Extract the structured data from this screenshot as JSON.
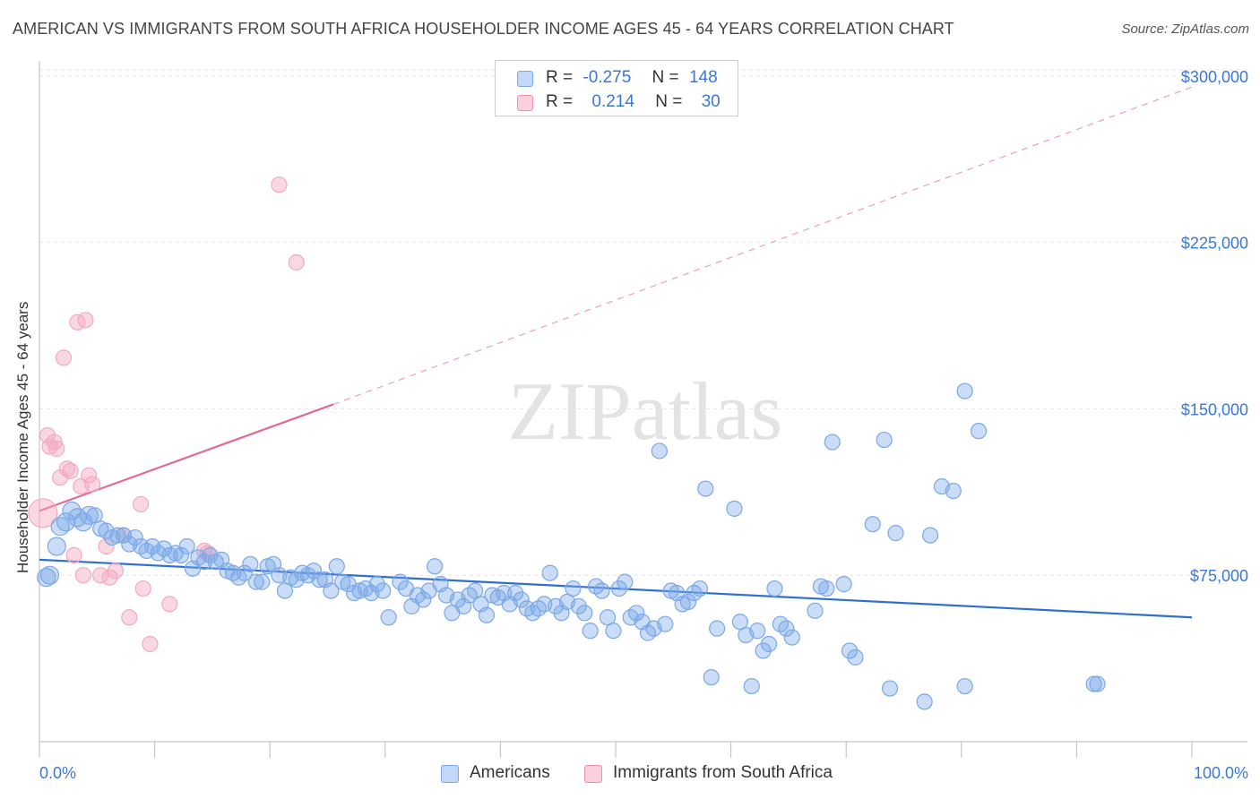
{
  "title": "AMERICAN VS IMMIGRANTS FROM SOUTH AFRICA HOUSEHOLDER INCOME AGES 45 - 64 YEARS CORRELATION CHART",
  "source": "Source: ZipAtlas.com",
  "watermark": "ZIPatlas",
  "legend": {
    "r_label": "R =",
    "n_label": "N =",
    "rows": [
      {
        "r": "-0.275",
        "n": "148",
        "color": "#a7c6f2",
        "border": "#6e9fe0"
      },
      {
        "r": "0.214",
        "n": "30",
        "color": "#f7bccd",
        "border": "#e88aa5"
      }
    ]
  },
  "bottom_legend": [
    "Americans",
    "Immigrants from South Africa"
  ],
  "chart_data": {
    "type": "scatter",
    "title": "AMERICAN VS IMMIGRANTS FROM SOUTH AFRICA HOUSEHOLDER INCOME AGES 45 - 64 YEARS CORRELATION CHART",
    "xlabel": "",
    "ylabel": "Householder Income Ages 45 - 64 years",
    "xlim": [
      0,
      100
    ],
    "ylim": [
      0,
      310000
    ],
    "x_tick_labels": [
      "0.0%",
      "100.0%"
    ],
    "y_ticks": [
      75000,
      150000,
      225000,
      300000
    ],
    "y_tick_labels": [
      "$75,000",
      "$150,000",
      "$225,000",
      "$300,000"
    ],
    "grid": true,
    "series": [
      {
        "name": "Americans",
        "color": "#7aa8e8",
        "line_color": "#2f6fce",
        "trend": {
          "x": [
            0,
            100
          ],
          "y": [
            82000,
            56000
          ]
        },
        "points": [
          [
            0.6,
            74000
          ],
          [
            0.9,
            75000
          ],
          [
            1.5,
            88000
          ],
          [
            1.8,
            97000
          ],
          [
            2.3,
            99000
          ],
          [
            2.8,
            104000
          ],
          [
            3.3,
            101000
          ],
          [
            3.8,
            99000
          ],
          [
            4.3,
            102000
          ],
          [
            4.8,
            102000
          ],
          [
            5.3,
            96000
          ],
          [
            5.8,
            95000
          ],
          [
            6.3,
            92000
          ],
          [
            6.8,
            93000
          ],
          [
            7.3,
            93000
          ],
          [
            7.8,
            89000
          ],
          [
            8.3,
            92000
          ],
          [
            8.8,
            88000
          ],
          [
            9.3,
            86000
          ],
          [
            9.8,
            88000
          ],
          [
            10.3,
            85000
          ],
          [
            10.8,
            87000
          ],
          [
            11.3,
            84000
          ],
          [
            11.8,
            85000
          ],
          [
            12.3,
            84000
          ],
          [
            12.8,
            88000
          ],
          [
            13.3,
            78000
          ],
          [
            13.8,
            83000
          ],
          [
            14.3,
            81000
          ],
          [
            14.8,
            84000
          ],
          [
            15.3,
            81000
          ],
          [
            15.8,
            82000
          ],
          [
            16.3,
            77000
          ],
          [
            16.8,
            76000
          ],
          [
            17.3,
            74000
          ],
          [
            17.8,
            76000
          ],
          [
            18.3,
            80000
          ],
          [
            18.8,
            72000
          ],
          [
            19.3,
            72000
          ],
          [
            19.8,
            79000
          ],
          [
            20.3,
            80000
          ],
          [
            20.8,
            75000
          ],
          [
            21.3,
            68000
          ],
          [
            21.8,
            74000
          ],
          [
            22.3,
            73000
          ],
          [
            22.8,
            76000
          ],
          [
            23.3,
            75000
          ],
          [
            23.8,
            77000
          ],
          [
            24.3,
            73000
          ],
          [
            24.8,
            73000
          ],
          [
            25.3,
            68000
          ],
          [
            25.8,
            79000
          ],
          [
            26.3,
            72000
          ],
          [
            26.8,
            71000
          ],
          [
            27.3,
            67000
          ],
          [
            27.8,
            68000
          ],
          [
            28.3,
            69000
          ],
          [
            28.8,
            67000
          ],
          [
            29.3,
            71000
          ],
          [
            29.8,
            68000
          ],
          [
            30.3,
            56000
          ],
          [
            31.3,
            72000
          ],
          [
            31.8,
            69000
          ],
          [
            32.3,
            61000
          ],
          [
            32.8,
            66000
          ],
          [
            33.3,
            64000
          ],
          [
            33.8,
            68000
          ],
          [
            34.3,
            79000
          ],
          [
            34.8,
            71000
          ],
          [
            35.3,
            66000
          ],
          [
            35.8,
            58000
          ],
          [
            36.3,
            64000
          ],
          [
            36.8,
            61000
          ],
          [
            37.3,
            66000
          ],
          [
            37.8,
            68000
          ],
          [
            38.3,
            62000
          ],
          [
            38.8,
            57000
          ],
          [
            39.3,
            66000
          ],
          [
            39.8,
            65000
          ],
          [
            40.3,
            67000
          ],
          [
            40.8,
            62000
          ],
          [
            41.3,
            67000
          ],
          [
            41.8,
            64000
          ],
          [
            42.3,
            60000
          ],
          [
            42.8,
            58000
          ],
          [
            43.3,
            60000
          ],
          [
            43.8,
            62000
          ],
          [
            44.3,
            76000
          ],
          [
            44.8,
            61000
          ],
          [
            45.3,
            58000
          ],
          [
            45.8,
            63000
          ],
          [
            46.3,
            69000
          ],
          [
            46.8,
            61000
          ],
          [
            47.3,
            58000
          ],
          [
            47.8,
            50000
          ],
          [
            48.3,
            70000
          ],
          [
            48.8,
            68000
          ],
          [
            49.3,
            56000
          ],
          [
            49.8,
            50000
          ],
          [
            50.3,
            69000
          ],
          [
            50.8,
            72000
          ],
          [
            51.3,
            56000
          ],
          [
            51.8,
            58000
          ],
          [
            52.3,
            54000
          ],
          [
            52.8,
            49000
          ],
          [
            53.3,
            51000
          ],
          [
            53.8,
            131000
          ],
          [
            54.3,
            53000
          ],
          [
            54.8,
            68000
          ],
          [
            55.3,
            67000
          ],
          [
            55.8,
            62000
          ],
          [
            56.3,
            63000
          ],
          [
            56.8,
            67000
          ],
          [
            57.3,
            69000
          ],
          [
            57.8,
            114000
          ],
          [
            58.3,
            29000
          ],
          [
            58.8,
            51000
          ],
          [
            60.3,
            105000
          ],
          [
            60.8,
            54000
          ],
          [
            61.3,
            48000
          ],
          [
            61.8,
            25000
          ],
          [
            62.3,
            50000
          ],
          [
            62.8,
            41000
          ],
          [
            63.3,
            44000
          ],
          [
            63.8,
            69000
          ],
          [
            64.3,
            53000
          ],
          [
            64.8,
            51000
          ],
          [
            65.3,
            47000
          ],
          [
            67.3,
            59000
          ],
          [
            67.8,
            70000
          ],
          [
            68.3,
            69000
          ],
          [
            68.8,
            135000
          ],
          [
            69.8,
            71000
          ],
          [
            70.3,
            41000
          ],
          [
            70.8,
            38000
          ],
          [
            72.3,
            98000
          ],
          [
            73.3,
            136000
          ],
          [
            73.8,
            24000
          ],
          [
            74.3,
            94000
          ],
          [
            76.8,
            18000
          ],
          [
            77.3,
            93000
          ],
          [
            78.3,
            115000
          ],
          [
            79.3,
            113000
          ],
          [
            80.3,
            158000
          ],
          [
            80.3,
            25000
          ],
          [
            81.5,
            140000
          ],
          [
            91.5,
            26000
          ],
          [
            91.8,
            26000
          ]
        ]
      },
      {
        "name": "Immigrants from South Africa",
        "color": "#f4a9bf",
        "line_color": "#e06a93",
        "trend": {
          "x": [
            0,
            25.5
          ],
          "y": [
            104000,
            152000
          ]
        },
        "trend_ext": {
          "x": [
            25.5,
            100
          ],
          "y": [
            152000,
            295000
          ]
        },
        "points": [
          [
            0.3,
            103000
          ],
          [
            0.7,
            138000
          ],
          [
            0.9,
            133000
          ],
          [
            1.3,
            135000
          ],
          [
            1.5,
            132000
          ],
          [
            1.8,
            119000
          ],
          [
            2.1,
            173000
          ],
          [
            2.4,
            123000
          ],
          [
            2.7,
            122000
          ],
          [
            3.0,
            84000
          ],
          [
            3.3,
            189000
          ],
          [
            3.6,
            115000
          ],
          [
            3.8,
            75000
          ],
          [
            4.0,
            190000
          ],
          [
            4.3,
            120000
          ],
          [
            4.6,
            116000
          ],
          [
            5.3,
            75000
          ],
          [
            5.8,
            88000
          ],
          [
            6.1,
            74000
          ],
          [
            6.6,
            77000
          ],
          [
            7.3,
            93000
          ],
          [
            7.8,
            56000
          ],
          [
            8.8,
            107000
          ],
          [
            9.0,
            69000
          ],
          [
            9.6,
            44000
          ],
          [
            11.3,
            62000
          ],
          [
            14.3,
            86000
          ],
          [
            14.6,
            85000
          ],
          [
            20.8,
            251000
          ],
          [
            22.3,
            216000
          ]
        ]
      }
    ]
  }
}
